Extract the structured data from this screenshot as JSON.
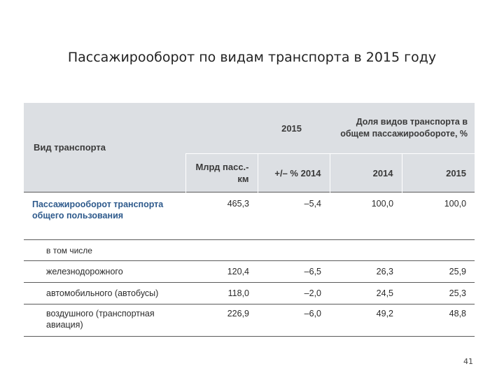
{
  "slide": {
    "title": "Пассажирооборот по видам транспорта в 2015 году",
    "page_number": "41"
  },
  "table": {
    "header": {
      "type_label": "Вид транспорта",
      "year_label": "2015",
      "share_label": "Доля видов транспорта в общем пассажирообороте, %",
      "volume_label": "Млрд пасс.-км",
      "change_label": "+/– % 2014",
      "share_2014": "2014",
      "share_2015": "2015"
    },
    "total": {
      "label": "Пассажирооборот транспорта общего пользования",
      "volume": "465,3",
      "change": "–5,4",
      "share_2014": "100,0",
      "share_2015": "100,0"
    },
    "including_label": "в том числе",
    "rows": [
      {
        "label": "железнодорожного",
        "volume": "120,4",
        "change": "–6,5",
        "share_2014": "26,3",
        "share_2015": "25,9"
      },
      {
        "label": "автомобильного (автобусы)",
        "volume": "118,0",
        "change": "–2,0",
        "share_2014": "24,5",
        "share_2015": "25,3"
      },
      {
        "label": "воздушного (транспортная авиация)",
        "volume": "226,9",
        "change": "–6,0",
        "share_2014": "49,2",
        "share_2015": "48,8"
      }
    ]
  }
}
